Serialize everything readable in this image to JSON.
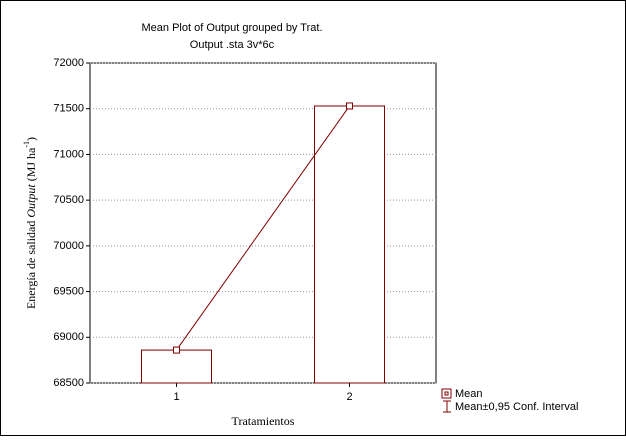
{
  "chart_data": {
    "type": "bar",
    "title": "Mean Plot of Output grouped by  Trat.",
    "subtitle": "Output .sta 3v*6c",
    "x_label": "Tratamientos",
    "y_label": [
      "Energía de salidad ",
      "Output",
      " (MJ ha",
      "-1",
      ")"
    ],
    "categories": [
      "1",
      "2"
    ],
    "values": [
      68860,
      71530
    ],
    "color": "#800000",
    "ylim": [
      68500,
      72000
    ],
    "yticks": [
      68500,
      69000,
      69500,
      70000,
      70500,
      71000,
      71500,
      72000
    ],
    "grid": true,
    "legend": [
      "Mean",
      "Mean±0,95 Conf. Interval"
    ]
  }
}
